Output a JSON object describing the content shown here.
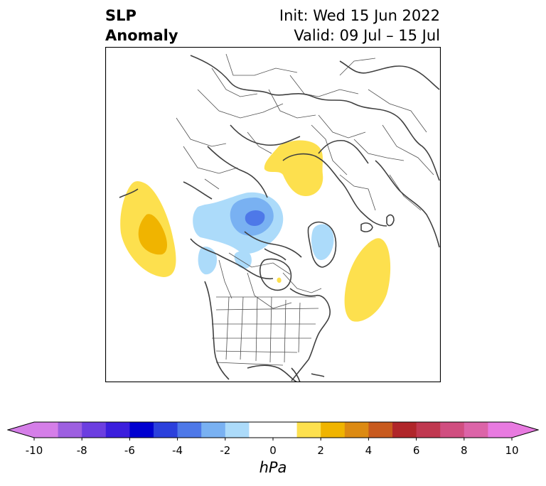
{
  "title": {
    "line1": "SLP",
    "line2": "Anomaly",
    "init": "Init: Wed 15 Jun 2022",
    "valid": "Valid: 09 Jul – 15 Jul"
  },
  "colorbar": {
    "unit": "hPa",
    "ticks": [
      "-10",
      "-8",
      "-6",
      "-4",
      "-2",
      "0",
      "2",
      "4",
      "6",
      "8",
      "10"
    ],
    "tick_values": [
      -10,
      -8,
      -6,
      -4,
      -2,
      0,
      2,
      4,
      6,
      8,
      10
    ],
    "range": [
      -10,
      10
    ],
    "extend": "both",
    "low_extend_color": "#d57ee8",
    "high_extend_color": "#e87ae0",
    "bins": [
      {
        "from": -10,
        "to": -9,
        "color": "#d57ee8"
      },
      {
        "from": -9,
        "to": -8,
        "color": "#9d5fe0"
      },
      {
        "from": -8,
        "to": -7,
        "color": "#6c3ee0"
      },
      {
        "from": -7,
        "to": -6,
        "color": "#3b1edd"
      },
      {
        "from": -6,
        "to": -5,
        "color": "#0000d0"
      },
      {
        "from": -5,
        "to": -4,
        "color": "#2b40dc"
      },
      {
        "from": -4,
        "to": -3,
        "color": "#4e78e8"
      },
      {
        "from": -3,
        "to": -2,
        "color": "#79b1f2"
      },
      {
        "from": -2,
        "to": -1,
        "color": "#acdbfa"
      },
      {
        "from": -1,
        "to": 1,
        "color": "#ffffff"
      },
      {
        "from": 1,
        "to": 2,
        "color": "#fde04e"
      },
      {
        "from": 2,
        "to": 3,
        "color": "#f0b400"
      },
      {
        "from": 3,
        "to": 4,
        "color": "#dc8a12"
      },
      {
        "from": 4,
        "to": 5,
        "color": "#c85a1e"
      },
      {
        "from": 5,
        "to": 6,
        "color": "#b0262a"
      },
      {
        "from": 6,
        "to": 7,
        "color": "#c03850"
      },
      {
        "from": 7,
        "to": 8,
        "color": "#d04e80"
      },
      {
        "from": 8,
        "to": 9,
        "color": "#dc64a8"
      },
      {
        "from": 9,
        "to": 10,
        "color": "#e87ae0"
      }
    ]
  },
  "map": {
    "projection": "north-polar-stereographic",
    "coastline_color": "#404040",
    "border_color": "#404040",
    "anomalies": [
      {
        "region": "North Pacific",
        "sign": "positive",
        "max_hpa": 3
      },
      {
        "region": "Canadian Arctic / Beaufort Sea",
        "sign": "negative",
        "min_hpa": -4
      },
      {
        "region": "Eurasian Arctic / Kara Sea",
        "sign": "positive",
        "max_hpa": 2
      },
      {
        "region": "North Atlantic",
        "sign": "positive",
        "max_hpa": 2
      },
      {
        "region": "Greenland",
        "sign": "negative",
        "min_hpa": -2
      }
    ]
  }
}
